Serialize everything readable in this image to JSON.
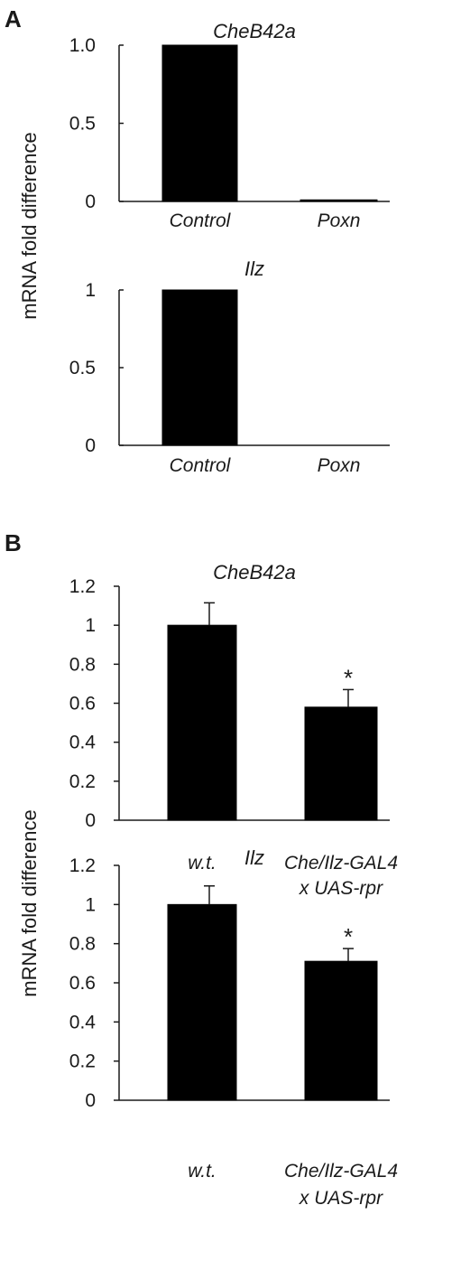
{
  "panels": {
    "a": "A",
    "b": "B"
  },
  "ylabels": {
    "a": "mRNA fold difference",
    "b": "mRNA fold difference"
  },
  "chart_data": [
    {
      "id": "a1",
      "type": "bar",
      "title": "CheB42a",
      "categories": [
        "Control",
        "Poxn"
      ],
      "values": [
        1.0,
        0.01
      ],
      "ylim": [
        0,
        1
      ],
      "yticks": [
        "0",
        "0.5",
        "1.0"
      ],
      "ytick_values": [
        0,
        0.5,
        1.0
      ],
      "grid": false,
      "bar_color": "#000000"
    },
    {
      "id": "a2",
      "type": "bar",
      "title": "Ilz",
      "categories": [
        "Control",
        "Poxn"
      ],
      "values": [
        1.0,
        0.0
      ],
      "ylim": [
        0,
        1
      ],
      "yticks": [
        "0",
        "0.5",
        "1"
      ],
      "ytick_values": [
        0,
        0.5,
        1
      ],
      "grid": false,
      "bar_color": "#000000"
    },
    {
      "id": "b1",
      "type": "bar",
      "title": "CheB42a",
      "categories": [
        [
          "w.t."
        ],
        [
          "Che/Ilz-GAL4",
          "x UAS-rpr"
        ]
      ],
      "values": [
        1.0,
        0.58
      ],
      "errors": [
        0.115,
        0.09
      ],
      "significance": [
        "",
        "*"
      ],
      "ylim": [
        0,
        1.2
      ],
      "yticks": [
        "0",
        "0.2",
        "0.4",
        "0.6",
        "0.8",
        "1",
        "1.2"
      ],
      "ytick_values": [
        0,
        0.2,
        0.4,
        0.6,
        0.8,
        1,
        1.2
      ],
      "grid": false,
      "bar_color": "#000000"
    },
    {
      "id": "b2",
      "type": "bar",
      "title": "Ilz",
      "categories": [
        [
          "w.t."
        ],
        [
          "Che/Ilz-GAL4",
          "x UAS-rpr"
        ]
      ],
      "values": [
        1.0,
        0.71
      ],
      "errors": [
        0.095,
        0.065
      ],
      "significance": [
        "",
        "*"
      ],
      "ylim": [
        0,
        1.2
      ],
      "yticks": [
        "0",
        "0.2",
        "0.4",
        "0.6",
        "0.8",
        "1",
        "1.2"
      ],
      "ytick_values": [
        0,
        0.2,
        0.4,
        0.6,
        0.8,
        1,
        1.2
      ],
      "grid": false,
      "bar_color": "#000000"
    }
  ]
}
